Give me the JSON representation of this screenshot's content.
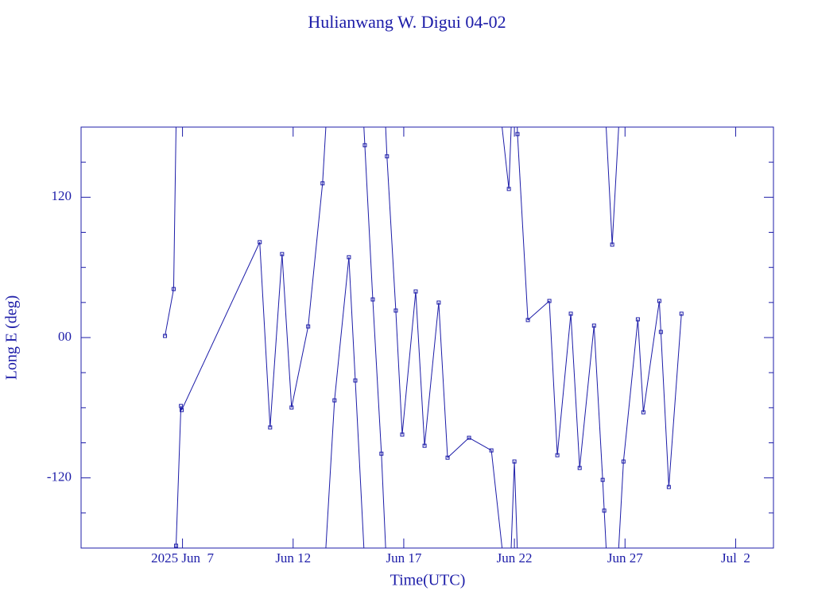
{
  "chart_data": {
    "type": "line",
    "title": "Hulianwang W. Digui 04-02",
    "xlabel": "Time(UTC)",
    "ylabel": "Long E (deg)",
    "color": "#1c1ca8",
    "wrap": true,
    "xlim": [
      "2025-06-02T10:00",
      "2025-07-03T17:00"
    ],
    "xticks": [
      {
        "value": "2025-06-07T00:00",
        "label": "2025 Jun  7"
      },
      {
        "value": "2025-06-12T00:00",
        "label": "Jun 12"
      },
      {
        "value": "2025-06-17T00:00",
        "label": "Jun 17"
      },
      {
        "value": "2025-06-22T00:00",
        "label": "Jun 22"
      },
      {
        "value": "2025-06-27T00:00",
        "label": "Jun 27"
      },
      {
        "value": "2025-07-02T00:00",
        "label": "Jul  2"
      }
    ],
    "ylim": [
      -180,
      180
    ],
    "yticks": [
      -120,
      {
        "value": 0,
        "label": "00"
      },
      120
    ],
    "yminor_ticks": [
      -150,
      -90,
      -60,
      -30,
      30,
      60,
      90,
      150
    ],
    "x": [
      "2025-06-06T05:00",
      "2025-06-06T14:24",
      "2025-06-06T17:02",
      "2025-06-06T22:19",
      "2025-06-06T23:08",
      "2025-06-10T11:46",
      "2025-06-10T23:02",
      "2025-06-11T12:00",
      "2025-06-11T22:19",
      "2025-06-12T16:19",
      "2025-06-13T07:55",
      "2025-06-13T20:53",
      "2025-06-14T12:29",
      "2025-06-14T19:26",
      "2025-06-15T05:46",
      "2025-06-15T14:24",
      "2025-06-15T23:46",
      "2025-06-16T05:46",
      "2025-06-16T15:22",
      "2025-06-16T22:19",
      "2025-06-17T12:58",
      "2025-06-17T22:34",
      "2025-06-18T13:55",
      "2025-06-18T23:31",
      "2025-06-19T22:48",
      "2025-06-20T23:02",
      "2025-06-21T18:00",
      "2025-06-22T00:00",
      "2025-06-22T03:22",
      "2025-06-22T14:38",
      "2025-06-23T13:55",
      "2025-06-23T22:34",
      "2025-06-24T13:12",
      "2025-06-24T22:48",
      "2025-06-25T14:24",
      "2025-06-25T23:46",
      "2025-06-26T01:26",
      "2025-06-26T10:05",
      "2025-06-26T22:19",
      "2025-06-27T13:55",
      "2025-06-27T19:55",
      "2025-06-28T13:12",
      "2025-06-28T14:53",
      "2025-06-28T23:31",
      "2025-06-29T13:12"
    ],
    "values": [
      1.4,
      41.5,
      -178,
      -58.5,
      -62,
      81.6,
      -76.8,
      71.4,
      -59.8,
      9.5,
      131.9,
      -53.7,
      68.7,
      -36.7,
      164.5,
      32.6,
      -99.3,
      155,
      23.1,
      -82.9,
      39.4,
      -92.5,
      29.9,
      -102.7,
      -85.7,
      -96.5,
      127.1,
      -106,
      174,
      15,
      31.3,
      -100.6,
      20.4,
      -111.5,
      10.2,
      -121.7,
      -148,
      79.5,
      -106,
      15.6,
      -63.9,
      31.3,
      4.8,
      -127.8,
      20.4
    ]
  }
}
